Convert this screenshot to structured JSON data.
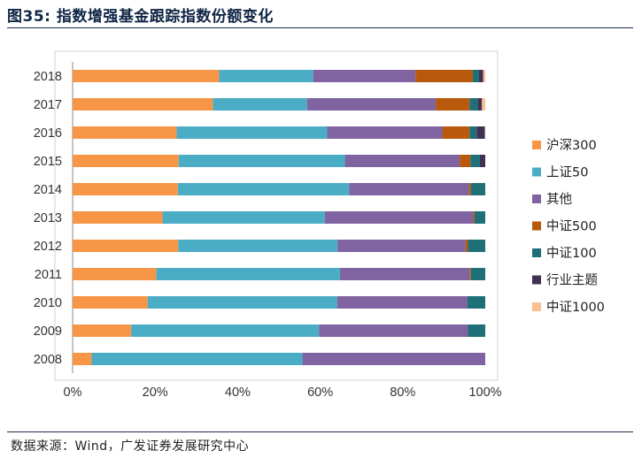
{
  "header": {
    "title": "图35:  指数增强基金跟踪指数份额变化"
  },
  "footer": {
    "source": "数据来源：Wind，广发证券发展研究中心"
  },
  "chart_data": {
    "type": "bar",
    "orientation": "horizontal",
    "stacked": true,
    "categories": [
      "2018",
      "2017",
      "2016",
      "2015",
      "2014",
      "2013",
      "2012",
      "2011",
      "2010",
      "2009",
      "2008"
    ],
    "xlim": [
      0,
      100
    ],
    "xticks": [
      "0%",
      "20%",
      "40%",
      "60%",
      "80%",
      "100%"
    ],
    "legend_position": "right",
    "series": [
      {
        "name": "沪深300",
        "color": "#f79646",
        "values": [
          35.5,
          34.0,
          25.2,
          25.7,
          25.5,
          21.8,
          25.6,
          20.3,
          18.2,
          14.2,
          4.6
        ]
      },
      {
        "name": "上证50",
        "color": "#4bacc6",
        "values": [
          22.8,
          22.8,
          36.5,
          40.3,
          41.5,
          39.3,
          38.6,
          44.5,
          45.9,
          45.5,
          51.1
        ]
      },
      {
        "name": "其他",
        "color": "#8064a2",
        "values": [
          24.8,
          31.2,
          27.9,
          27.8,
          29.0,
          36.0,
          31.0,
          31.4,
          31.6,
          36.1,
          44.3
        ]
      },
      {
        "name": "中证500",
        "color": "#b8590c",
        "values": [
          13.9,
          8.2,
          6.6,
          2.6,
          0.5,
          0.3,
          0.6,
          0.3,
          0.0,
          0.0,
          0.0
        ]
      },
      {
        "name": "中证100",
        "color": "#1f6f78",
        "values": [
          1.5,
          2.0,
          1.7,
          2.3,
          3.5,
          2.6,
          4.2,
          3.5,
          4.3,
          4.2,
          0.0
        ]
      },
      {
        "name": "行业主题",
        "color": "#403152",
        "values": [
          1.0,
          1.0,
          2.0,
          1.3,
          0.0,
          0.0,
          0.0,
          0.0,
          0.0,
          0.0,
          0.0
        ]
      },
      {
        "name": "中证1000",
        "color": "#fac090",
        "values": [
          0.5,
          0.8,
          0.1,
          0.0,
          0.0,
          0.0,
          0.0,
          0.0,
          0.0,
          0.0,
          0.0
        ]
      }
    ]
  }
}
